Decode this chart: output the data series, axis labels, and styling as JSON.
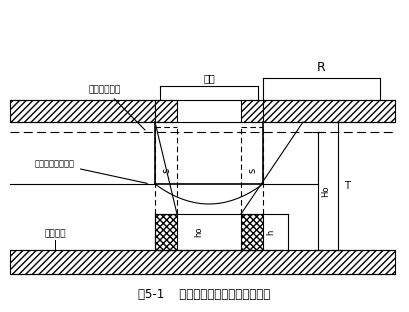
{
  "title": "图5-1    无压非完整井涌水量计算简图",
  "label_original_water": "原地下水位线",
  "label_foundation_pit": "基坑",
  "label_R": "R",
  "label_lowered_water": "降低后地下水位线",
  "label_impermeable": "不透水层",
  "label_s_left": "s",
  "label_s_right": "s",
  "label_ho_left": "ho",
  "label_ho_right": "h",
  "label_Ho": "Ho",
  "label_T": "T",
  "bg_color": "#ffffff",
  "line_color": "#000000"
}
